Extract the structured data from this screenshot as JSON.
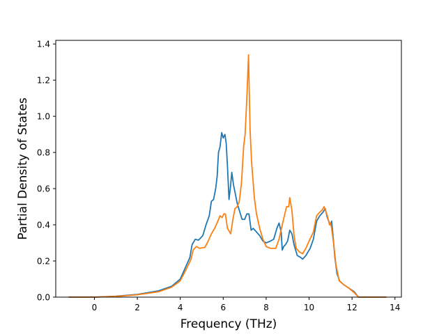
{
  "chart_data": {
    "type": "line",
    "xlabel": "Frequency (THz)",
    "ylabel": "Partial Density of States",
    "xlim": [
      -1.8,
      14.3
    ],
    "ylim": [
      0,
      1.42
    ],
    "xticks": [
      0,
      2,
      4,
      6,
      8,
      10,
      12,
      14
    ],
    "yticks": [
      0.0,
      0.2,
      0.4,
      0.6,
      0.8,
      1.0,
      1.2,
      1.4
    ],
    "xtick_labels": [
      "0",
      "2",
      "4",
      "6",
      "8",
      "10",
      "12",
      "14"
    ],
    "ytick_labels": [
      "0.0",
      "0.2",
      "0.4",
      "0.6",
      "0.8",
      "1.0",
      "1.2",
      "1.4"
    ],
    "grid": false,
    "legend": "none",
    "series": [
      {
        "color": "#1f77b4",
        "points": [
          [
            -1.2,
            0.0
          ],
          [
            0.0,
            0.0
          ],
          [
            1.0,
            0.005
          ],
          [
            2.0,
            0.015
          ],
          [
            3.0,
            0.035
          ],
          [
            3.6,
            0.06
          ],
          [
            4.0,
            0.1
          ],
          [
            4.3,
            0.18
          ],
          [
            4.45,
            0.22
          ],
          [
            4.55,
            0.29
          ],
          [
            4.7,
            0.32
          ],
          [
            4.85,
            0.315
          ],
          [
            5.05,
            0.34
          ],
          [
            5.2,
            0.4
          ],
          [
            5.35,
            0.45
          ],
          [
            5.45,
            0.53
          ],
          [
            5.55,
            0.54
          ],
          [
            5.65,
            0.6
          ],
          [
            5.72,
            0.67
          ],
          [
            5.78,
            0.8
          ],
          [
            5.85,
            0.83
          ],
          [
            5.93,
            0.91
          ],
          [
            6.0,
            0.88
          ],
          [
            6.08,
            0.9
          ],
          [
            6.14,
            0.85
          ],
          [
            6.2,
            0.72
          ],
          [
            6.27,
            0.54
          ],
          [
            6.33,
            0.6
          ],
          [
            6.4,
            0.69
          ],
          [
            6.48,
            0.62
          ],
          [
            6.55,
            0.58
          ],
          [
            6.65,
            0.52
          ],
          [
            6.75,
            0.48
          ],
          [
            6.88,
            0.43
          ],
          [
            7.0,
            0.43
          ],
          [
            7.1,
            0.46
          ],
          [
            7.2,
            0.46
          ],
          [
            7.3,
            0.37
          ],
          [
            7.4,
            0.38
          ],
          [
            7.55,
            0.36
          ],
          [
            7.7,
            0.34
          ],
          [
            7.85,
            0.31
          ],
          [
            8.0,
            0.3
          ],
          [
            8.2,
            0.31
          ],
          [
            8.35,
            0.32
          ],
          [
            8.5,
            0.38
          ],
          [
            8.6,
            0.41
          ],
          [
            8.7,
            0.36
          ],
          [
            8.75,
            0.26
          ],
          [
            8.82,
            0.28
          ],
          [
            8.9,
            0.29
          ],
          [
            9.0,
            0.31
          ],
          [
            9.1,
            0.37
          ],
          [
            9.2,
            0.35
          ],
          [
            9.3,
            0.29
          ],
          [
            9.45,
            0.23
          ],
          [
            9.6,
            0.22
          ],
          [
            9.7,
            0.21
          ],
          [
            9.85,
            0.23
          ],
          [
            10.05,
            0.27
          ],
          [
            10.2,
            0.32
          ],
          [
            10.35,
            0.42
          ],
          [
            10.5,
            0.45
          ],
          [
            10.65,
            0.47
          ],
          [
            10.75,
            0.49
          ],
          [
            10.85,
            0.44
          ],
          [
            10.95,
            0.41
          ],
          [
            11.0,
            0.4
          ],
          [
            11.05,
            0.42
          ],
          [
            11.1,
            0.36
          ],
          [
            11.2,
            0.22
          ],
          [
            11.3,
            0.13
          ],
          [
            11.42,
            0.09
          ],
          [
            11.6,
            0.07
          ],
          [
            11.85,
            0.05
          ],
          [
            12.1,
            0.03
          ],
          [
            12.3,
            0.0
          ],
          [
            13.6,
            0.0
          ]
        ]
      },
      {
        "color": "#ff7f0e",
        "points": [
          [
            -1.2,
            0.0
          ],
          [
            0.0,
            0.0
          ],
          [
            1.0,
            0.004
          ],
          [
            2.0,
            0.013
          ],
          [
            3.0,
            0.03
          ],
          [
            3.6,
            0.055
          ],
          [
            4.0,
            0.09
          ],
          [
            4.3,
            0.16
          ],
          [
            4.5,
            0.21
          ],
          [
            4.6,
            0.26
          ],
          [
            4.75,
            0.28
          ],
          [
            4.9,
            0.27
          ],
          [
            5.15,
            0.275
          ],
          [
            5.3,
            0.31
          ],
          [
            5.45,
            0.35
          ],
          [
            5.6,
            0.38
          ],
          [
            5.75,
            0.42
          ],
          [
            5.85,
            0.45
          ],
          [
            5.95,
            0.44
          ],
          [
            6.03,
            0.46
          ],
          [
            6.1,
            0.46
          ],
          [
            6.2,
            0.38
          ],
          [
            6.35,
            0.35
          ],
          [
            6.45,
            0.43
          ],
          [
            6.55,
            0.49
          ],
          [
            6.65,
            0.5
          ],
          [
            6.75,
            0.53
          ],
          [
            6.85,
            0.63
          ],
          [
            6.95,
            0.83
          ],
          [
            7.02,
            0.9
          ],
          [
            7.1,
            1.1
          ],
          [
            7.18,
            1.34
          ],
          [
            7.25,
            0.93
          ],
          [
            7.32,
            0.75
          ],
          [
            7.45,
            0.55
          ],
          [
            7.55,
            0.46
          ],
          [
            7.7,
            0.38
          ],
          [
            7.85,
            0.32
          ],
          [
            8.0,
            0.28
          ],
          [
            8.2,
            0.27
          ],
          [
            8.45,
            0.27
          ],
          [
            8.6,
            0.32
          ],
          [
            8.75,
            0.4
          ],
          [
            8.85,
            0.45
          ],
          [
            8.95,
            0.5
          ],
          [
            9.05,
            0.5
          ],
          [
            9.1,
            0.55
          ],
          [
            9.2,
            0.48
          ],
          [
            9.3,
            0.34
          ],
          [
            9.4,
            0.27
          ],
          [
            9.55,
            0.25
          ],
          [
            9.7,
            0.24
          ],
          [
            9.85,
            0.27
          ],
          [
            10.0,
            0.31
          ],
          [
            10.2,
            0.36
          ],
          [
            10.35,
            0.45
          ],
          [
            10.5,
            0.47
          ],
          [
            10.6,
            0.48
          ],
          [
            10.7,
            0.5
          ],
          [
            10.85,
            0.45
          ],
          [
            10.95,
            0.4
          ],
          [
            11.0,
            0.41
          ],
          [
            11.05,
            0.38
          ],
          [
            11.15,
            0.29
          ],
          [
            11.25,
            0.18
          ],
          [
            11.4,
            0.09
          ],
          [
            11.6,
            0.07
          ],
          [
            11.85,
            0.05
          ],
          [
            12.1,
            0.025
          ],
          [
            12.3,
            0.0
          ],
          [
            13.6,
            0.0
          ]
        ]
      }
    ]
  }
}
